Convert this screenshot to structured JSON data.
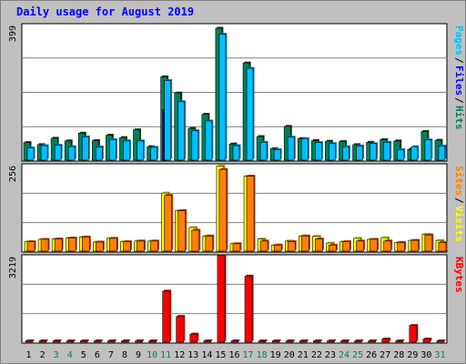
{
  "chart_data": {
    "type": "bar",
    "title": "Daily usage for August 2019",
    "days": [
      "1",
      "2",
      "3",
      "4",
      "5",
      "6",
      "7",
      "8",
      "9",
      "10",
      "11",
      "12",
      "13",
      "14",
      "15",
      "16",
      "17",
      "18",
      "19",
      "20",
      "21",
      "22",
      "23",
      "24",
      "25",
      "26",
      "27",
      "28",
      "29",
      "30",
      "31"
    ],
    "weekend_days": [
      "3",
      "4",
      "10",
      "11",
      "17",
      "18",
      "24",
      "25",
      "31"
    ],
    "panels": [
      {
        "id": "hits",
        "max_label": "399",
        "ylim": [
          0,
          399
        ],
        "series": [
          {
            "name": "Hits",
            "color": "#00805c",
            "values": [
              52,
              46,
              65,
              57,
              80,
              58,
              74,
              67,
              90,
              40,
              247,
              199,
              94,
              136,
              391,
              48,
              288,
              70,
              34,
              100,
              64,
              58,
              56,
              55,
              46,
              53,
              61,
              57,
              32,
              85,
              59
            ]
          },
          {
            "name": "Files",
            "color": "#0000ff",
            "values": [
              0,
              0,
              0,
              0,
              0,
              0,
              0,
              0,
              0,
              0,
              150,
              0,
              0,
              0,
              0,
              0,
              0,
              0,
              0,
              0,
              0,
              0,
              0,
              0,
              0,
              0,
              0,
              0,
              0,
              0,
              0
            ]
          },
          {
            "name": "Pages",
            "color": "#00c0ff",
            "values": [
              36,
              43,
              44,
              40,
              69,
              39,
              61,
              57,
              57,
              38,
              236,
              173,
              87,
              116,
              373,
              43,
              272,
              53,
              31,
              68,
              64,
              52,
              49,
              40,
              42,
              49,
              53,
              31,
              40,
              60,
              42
            ]
          }
        ]
      },
      {
        "id": "visits",
        "max_label": "256",
        "ylim": [
          0,
          256
        ],
        "series": [
          {
            "name": "Visits",
            "color": "#ffff00",
            "values": [
              28,
              35,
              36,
              39,
              42,
              27,
              38,
              28,
              30,
              30,
              172,
              120,
              70,
              45,
              252,
              22,
              222,
              36,
              18,
              30,
              45,
              44,
              24,
              28,
              38,
              35,
              40,
              26,
              32,
              50,
              32
            ]
          },
          {
            "name": "Sites",
            "color": "#ff8000",
            "values": [
              28,
              35,
              36,
              39,
              42,
              27,
              38,
              28,
              30,
              30,
              165,
              120,
              62,
              45,
              242,
              22,
              222,
              30,
              18,
              28,
              45,
              36,
              18,
              28,
              30,
              35,
              30,
              26,
              32,
              48,
              26
            ]
          }
        ]
      },
      {
        "id": "kbytes",
        "max_label": "3219",
        "ylim": [
          0,
          3219
        ],
        "series": [
          {
            "name": "KBytes",
            "color": "#ff0000",
            "values": [
              0,
              0,
              0,
              0,
              0,
              0,
              0,
              0,
              0,
              0,
              1900,
              960,
              300,
              0,
              3219,
              0,
              2460,
              0,
              0,
              0,
              0,
              0,
              0,
              0,
              0,
              0,
              120,
              0,
              620,
              120,
              0
            ]
          }
        ]
      }
    ],
    "colors": {
      "background": "#c0c0c0",
      "plot": "#ffffff",
      "title": "#0000ff",
      "weekday_label": "#000000",
      "weekend_label": "#00805c"
    }
  }
}
